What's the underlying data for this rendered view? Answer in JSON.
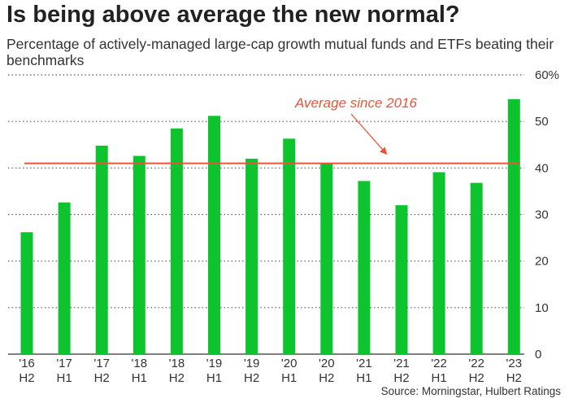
{
  "header": {
    "title": "Is being above average the new normal?",
    "subtitle": "Percentage of actively-managed large-cap growth mutual funds and ETFs beating their benchmarks"
  },
  "footer": {
    "source": "Source: Morningstar, Hulbert Ratings"
  },
  "chart_data": {
    "type": "bar",
    "title": "Is being above average the new normal?",
    "subtitle": "Percentage of actively-managed large-cap growth mutual funds and ETFs beating their benchmarks",
    "categories": [
      [
        "'16",
        "H2"
      ],
      [
        "'17",
        "H1"
      ],
      [
        "'17",
        "H2"
      ],
      [
        "'18",
        "H1"
      ],
      [
        "'18",
        "H2"
      ],
      [
        "'19",
        "H1"
      ],
      [
        "'19",
        "H2"
      ],
      [
        "'20",
        "H1"
      ],
      [
        "'20",
        "H2"
      ],
      [
        "'21",
        "H1"
      ],
      [
        "'21",
        "H2"
      ],
      [
        "'22",
        "H1"
      ],
      [
        "'22",
        "H2"
      ],
      [
        "'23",
        "H2"
      ]
    ],
    "values": [
      26.2,
      32.6,
      44.8,
      42.6,
      48.5,
      51.2,
      42.0,
      46.3,
      41.0,
      37.2,
      32.0,
      39.1,
      36.8,
      54.8
    ],
    "ylim": [
      0,
      60
    ],
    "y_ticks": [
      "0",
      "10",
      "20",
      "30",
      "40",
      "50",
      "60%"
    ],
    "y_tick_values": [
      0,
      10,
      20,
      30,
      40,
      50,
      60
    ],
    "y_axis_side": "right",
    "grid": "horizontal-dotted",
    "reference_line": {
      "label": "Average since 2016",
      "value": 41
    },
    "colors": {
      "bar": "#0ec42e",
      "reference_line": "#e8553a",
      "grid": "#555555",
      "annotation": "#e8553a"
    }
  }
}
